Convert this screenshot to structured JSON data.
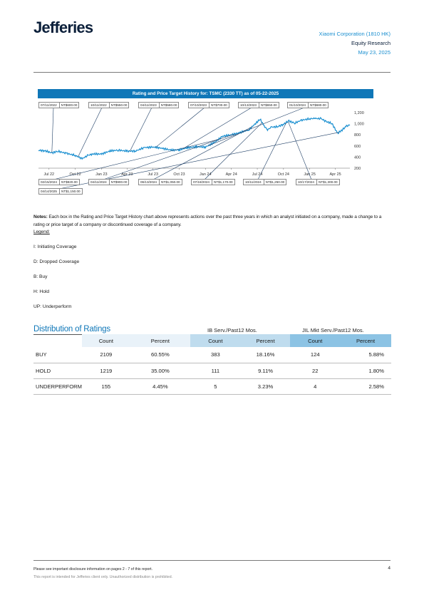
{
  "header": {
    "logo": "Jefferies",
    "company": "Xiaomi Corporation (1810 HK)",
    "department": "Equity Research",
    "date": "May 23, 2025"
  },
  "chart": {
    "title": "Rating and Price Target History for: TSMC (2330 TT) as of 05-22-2025",
    "price_target_boxes_top": [
      {
        "date": "07/11/2022",
        "value": "NT$600.00"
      },
      {
        "date": "10/11/2022",
        "value": "NT$550.00"
      },
      {
        "date": "04/11/2023",
        "value": "NT$580.00"
      },
      {
        "date": "07/10/2023",
        "value": "NT$700.00"
      },
      {
        "date": "10/13/2023",
        "value": "NT$650.00"
      },
      {
        "date": "01/10/2024",
        "value": "NT$680.00"
      }
    ],
    "price_target_boxes_bottom": [
      {
        "date": "02/15/2024",
        "value": "NT$820.00"
      },
      {
        "date": "04/11/2024",
        "value": "NT$900.00"
      },
      {
        "date": "06/13/2024",
        "value": "NT$1,050.00"
      },
      {
        "date": "07/18/2024",
        "value": "NT$1,170.00"
      },
      {
        "date": "10/11/2024",
        "value": "NT$1,250.00"
      },
      {
        "date": "10/17/2024",
        "value": "NT$1,300.00"
      }
    ],
    "price_target_boxes_bottom2": [
      {
        "date": "04/14/2025",
        "value": "NT$1,150.00"
      }
    ]
  },
  "chart_data": {
    "type": "line",
    "title": "Rating and Price Target History for: TSMC (2330 TT) as of 05-22-2025",
    "xlabel": "",
    "ylabel": "",
    "x_tick_labels": [
      "Jul 22",
      "Oct 22",
      "Jan 23",
      "Apr 23",
      "Jul 23",
      "Oct 23",
      "Jan 24",
      "Apr 24",
      "Jul 24",
      "Oct 24",
      "Jan 25",
      "Apr 25"
    ],
    "y_ticks": [
      200,
      400,
      600,
      800,
      1000,
      1200
    ],
    "ylim": [
      200,
      1200
    ],
    "grid": false,
    "color": "#1a8fd0",
    "series": [
      {
        "x": [
          "2022-05-25",
          "2022-06-15",
          "2022-07-11",
          "2022-08-01",
          "2022-09-01",
          "2022-10-01",
          "2022-10-25",
          "2022-11-15",
          "2022-12-01",
          "2023-01-01",
          "2023-02-01",
          "2023-03-01",
          "2023-04-01",
          "2023-05-01",
          "2023-06-01",
          "2023-07-01",
          "2023-08-01",
          "2023-09-01",
          "2023-10-01",
          "2023-11-01",
          "2023-12-01",
          "2024-01-01",
          "2024-02-01",
          "2024-03-01",
          "2024-04-01",
          "2024-05-01",
          "2024-06-01",
          "2024-07-11",
          "2024-07-25",
          "2024-08-06",
          "2024-08-20",
          "2024-09-10",
          "2024-10-01",
          "2024-10-20",
          "2024-11-10",
          "2024-12-01",
          "2025-01-01",
          "2025-01-20",
          "2025-02-10",
          "2025-03-01",
          "2025-03-20",
          "2025-04-09",
          "2025-04-25",
          "2025-05-10",
          "2025-05-22"
        ],
        "y": [
          520,
          515,
          475,
          505,
          465,
          430,
          370,
          430,
          455,
          455,
          510,
          525,
          505,
          510,
          570,
          580,
          560,
          525,
          530,
          570,
          585,
          580,
          660,
          775,
          800,
          840,
          890,
          1080,
          960,
          890,
          940,
          945,
          990,
          1050,
          1010,
          1060,
          1090,
          1095,
          1090,
          1035,
          1005,
          825,
          890,
          955,
          980
        ]
      }
    ]
  },
  "notes": {
    "label": "Notes:",
    "text": "Each box in the Rating and Price Target History chart above represents actions over the past three years in which an analyst initiated on a company, made a change to a rating or price target of a company or discontinued coverage of a company.",
    "legend_title": "Legend:",
    "legend": [
      "I: Initiating Coverage",
      "D: Dropped Coverage",
      "B: Buy",
      "H: Hold",
      "UP: Underperform"
    ]
  },
  "distribution": {
    "title": "Distribution of Ratings",
    "group_ib": "IB Serv./Past12 Mos.",
    "group_jil": "JIL Mkt Serv./Past12 Mos.",
    "columns": [
      "Count",
      "Percent",
      "Count",
      "Percent",
      "Count",
      "Percent"
    ],
    "rows": [
      {
        "label": "BUY",
        "count": "2109",
        "percent": "60.55%",
        "ib_count": "383",
        "ib_percent": "18.16%",
        "jil_count": "124",
        "jil_percent": "5.88%"
      },
      {
        "label": "HOLD",
        "count": "1219",
        "percent": "35.00%",
        "ib_count": "111",
        "ib_percent": "9.11%",
        "jil_count": "22",
        "jil_percent": "1.80%"
      },
      {
        "label": "UNDERPERFORM",
        "count": "155",
        "percent": "4.45%",
        "ib_count": "5",
        "ib_percent": "3.23%",
        "jil_count": "4",
        "jil_percent": "2.58%"
      }
    ]
  },
  "footer": {
    "disclosure": "Please see important disclosure information on pages 2 - 7 of this report.",
    "intended": "This report is intended for Jefferies client only. Unauthorized distribution is prohibited.",
    "page_number": "4"
  }
}
